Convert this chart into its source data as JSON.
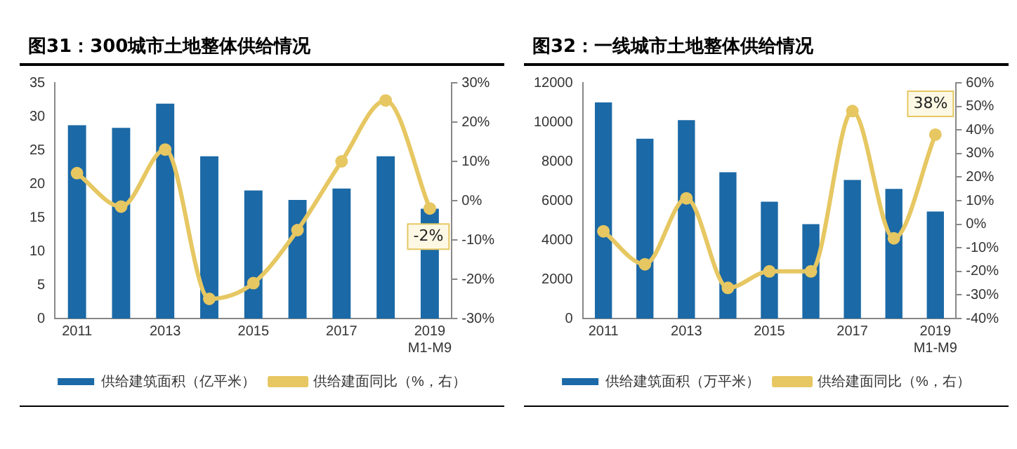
{
  "chart_data": [
    {
      "type": "bar",
      "title": "图31：300城市土地整体供给情况",
      "categories": [
        "2011",
        null,
        "2013",
        null,
        "2015",
        null,
        "2017",
        null,
        "2019\nM1-M9"
      ],
      "series": [
        {
          "name": "供给建筑面积（亿平米）",
          "color": "#1b69a6",
          "values": [
            28.7,
            28.3,
            31.9,
            24.1,
            19.0,
            17.6,
            19.3,
            24.1,
            16.3
          ]
        },
        {
          "type": "line",
          "axis": "y2",
          "name": "供给建面同比（%，右）",
          "color": "#e6c762",
          "marker": "circle",
          "values": [
            7,
            -1.5,
            13,
            -25,
            -21,
            -7.5,
            10,
            25.5,
            -2
          ],
          "value_labels": [
            null,
            null,
            null,
            null,
            null,
            null,
            null,
            null,
            "-2%"
          ]
        }
      ],
      "ylim": [
        0,
        35
      ],
      "yticks": [
        0,
        5,
        10,
        15,
        20,
        25,
        30,
        35
      ],
      "y2lim": [
        -30,
        30
      ],
      "y2ticks": [
        {
          "value": -30,
          "label": "-30%"
        },
        {
          "value": -20,
          "label": "-20%"
        },
        {
          "value": -10,
          "label": "-10%"
        },
        {
          "value": 0,
          "label": "0%"
        },
        {
          "value": 10,
          "label": "10%"
        },
        {
          "value": 20,
          "label": "20%"
        },
        {
          "value": 30,
          "label": "30%"
        }
      ],
      "grid": false,
      "legend": "bottom"
    },
    {
      "type": "bar",
      "title": "图32：一线城市土地整体供给情况",
      "categories": [
        "2011",
        null,
        "2013",
        null,
        "2015",
        null,
        "2017",
        null,
        "2019\nM1-M9"
      ],
      "series": [
        {
          "name": "供给建筑面积（万平米）",
          "color": "#1b69a6",
          "values": [
            11000,
            9150,
            10100,
            7450,
            5950,
            4800,
            7050,
            6600,
            5450
          ]
        },
        {
          "type": "line",
          "axis": "y2",
          "name": "供给建面同比（%，右）",
          "color": "#e6c762",
          "marker": "circle",
          "values": [
            -3,
            -17,
            11,
            -27,
            -20,
            -20,
            48,
            -6,
            38
          ],
          "value_labels": [
            null,
            null,
            null,
            null,
            null,
            null,
            null,
            null,
            "38%"
          ]
        }
      ],
      "ylim": [
        0,
        12000
      ],
      "yticks": [
        0,
        2000,
        4000,
        6000,
        8000,
        10000,
        12000
      ],
      "y2lim": [
        -40,
        60
      ],
      "y2ticks": [
        {
          "value": -40,
          "label": "-40%"
        },
        {
          "value": -30,
          "label": "-30%"
        },
        {
          "value": -20,
          "label": "-20%"
        },
        {
          "value": -10,
          "label": "-10%"
        },
        {
          "value": 0,
          "label": "0%"
        },
        {
          "value": 10,
          "label": "10%"
        },
        {
          "value": 20,
          "label": "20%"
        },
        {
          "value": 30,
          "label": "30%"
        },
        {
          "value": 40,
          "label": "40%"
        },
        {
          "value": 50,
          "label": "50%"
        },
        {
          "value": 60,
          "label": "60%"
        }
      ],
      "grid": false,
      "legend": "bottom"
    }
  ]
}
